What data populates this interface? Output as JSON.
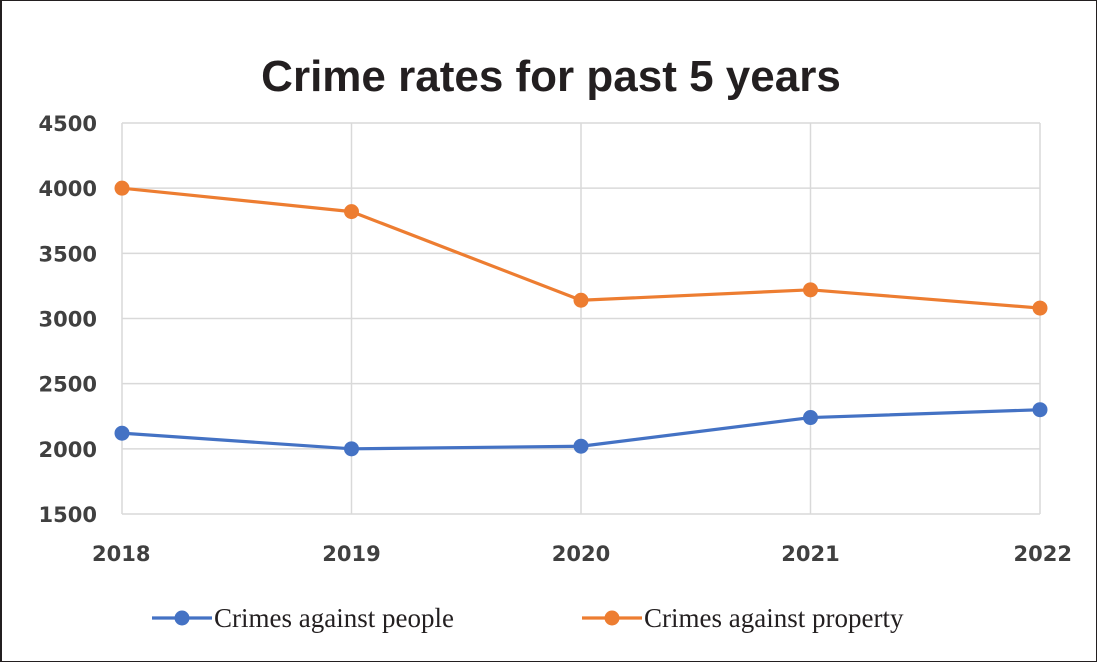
{
  "chart_data": {
    "type": "line",
    "title": "Crime rates for past 5 years",
    "xlabel": "",
    "ylabel": "",
    "categories": [
      "2018",
      "2019",
      "2020",
      "2021",
      "2022"
    ],
    "ylim": [
      1500,
      4500
    ],
    "yticks": [
      1500,
      2000,
      2500,
      3000,
      3500,
      4000,
      4500
    ],
    "grid": true,
    "legend_position": "bottom",
    "series": [
      {
        "name": "Crimes against people",
        "color": "#4472c4",
        "values": [
          2120,
          2000,
          2020,
          2240,
          2300
        ]
      },
      {
        "name": "Crimes against property",
        "color": "#ed7d31",
        "values": [
          4000,
          3820,
          3140,
          3220,
          3080
        ]
      }
    ]
  }
}
